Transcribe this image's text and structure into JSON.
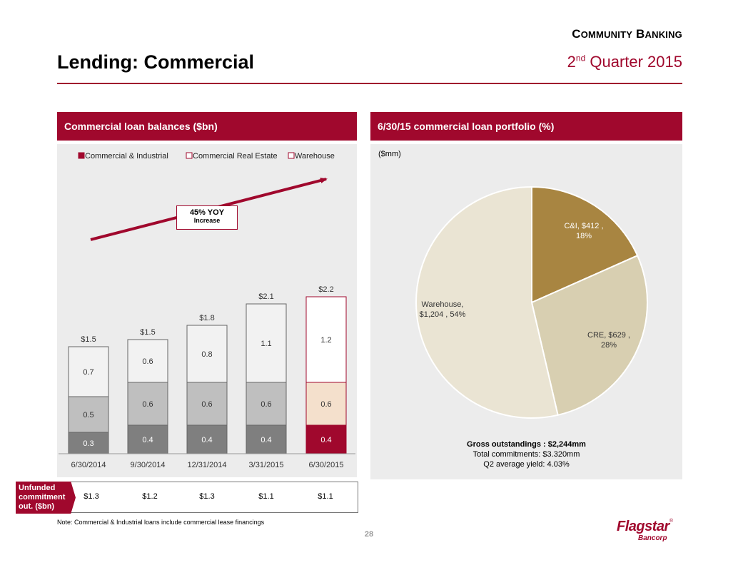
{
  "header": {
    "brand_cap1": "C",
    "brand_small1": "OMMUNITY",
    "brand_cap2": "B",
    "brand_small2": "ANKING",
    "quarter_num": "2",
    "quarter_sup": "nd",
    "quarter_rest": " Quarter 2015",
    "title": "Lending: Commercial"
  },
  "left_panel": {
    "heading": "Commercial loan balances ($bn)"
  },
  "right_panel": {
    "heading": "6/30/15 commercial loan portfolio (%)",
    "unit": "($mm)"
  },
  "callout": {
    "line1": "45% YOY",
    "line2": "Increase"
  },
  "colors": {
    "brand": "#a0082d",
    "ci": "#7f7f7f",
    "cre": "#bfbfbf",
    "warehouse": "#f2f2f2",
    "ci_highlight": "#a0082d",
    "cre_highlight": "#f4e0cc",
    "pie_ci": "#a88541",
    "pie_cre": "#d8cfb1",
    "pie_wh": "#eae4d3"
  },
  "chart_data": [
    {
      "type": "bar",
      "stacked": true,
      "categories": [
        "6/30/2014",
        "9/30/2014",
        "12/31/2014",
        "3/31/2015",
        "6/30/2015"
      ],
      "series": [
        {
          "name": "Commercial & Industrial",
          "values": [
            0.3,
            0.4,
            0.4,
            0.4,
            0.4
          ],
          "labels": [
            "0.3",
            "0.4",
            "0.4",
            "0.4",
            "0.4"
          ]
        },
        {
          "name": "Commercial Real Estate",
          "values": [
            0.5,
            0.6,
            0.6,
            0.6,
            0.6
          ],
          "labels": [
            "0.5",
            "0.6",
            "0.6",
            "0.6",
            "0.6"
          ]
        },
        {
          "name": "Warehouse",
          "values": [
            0.7,
            0.6,
            0.8,
            1.1,
            1.2
          ],
          "labels": [
            "0.7",
            "0.6",
            "0.8",
            "1.1",
            "1.2"
          ]
        }
      ],
      "totals": [
        1.5,
        1.5,
        1.8,
        2.1,
        2.2
      ],
      "total_labels": [
        "$1.5",
        "$1.5",
        "$1.8",
        "$2.1",
        "$2.2"
      ],
      "legend_position": "top",
      "grid": false,
      "ylim": [
        0,
        2.2
      ]
    },
    {
      "type": "pie",
      "slices": [
        {
          "name": "C&I",
          "value": 412,
          "percent": 18,
          "label1": "C&I, $412 ,",
          "label2": "18%"
        },
        {
          "name": "CRE",
          "value": 629,
          "percent": 28,
          "label1": "CRE, $629 ,",
          "label2": "28%"
        },
        {
          "name": "Warehouse",
          "value": 1204,
          "percent": 54,
          "label1": "Warehouse,",
          "label2": "$1,204 , 54%"
        }
      ]
    }
  ],
  "summary": {
    "gross": "Gross outstandings : $2,244mm",
    "commitments": "Total commitments: $3.320mm",
    "yield": "Q2 average yield: 4.03%"
  },
  "unfunded": {
    "label": "Unfunded commitment out. ($bn)",
    "values": [
      "$1.3",
      "$1.2",
      "$1.3",
      "$1.1",
      "$1.1"
    ]
  },
  "footer": {
    "note": "Note: Commercial & Industrial loans include commercial lease financings",
    "page": "28",
    "logo_main": "Flagstar",
    "logo_reg": "®",
    "logo_sub": "Bancorp"
  }
}
